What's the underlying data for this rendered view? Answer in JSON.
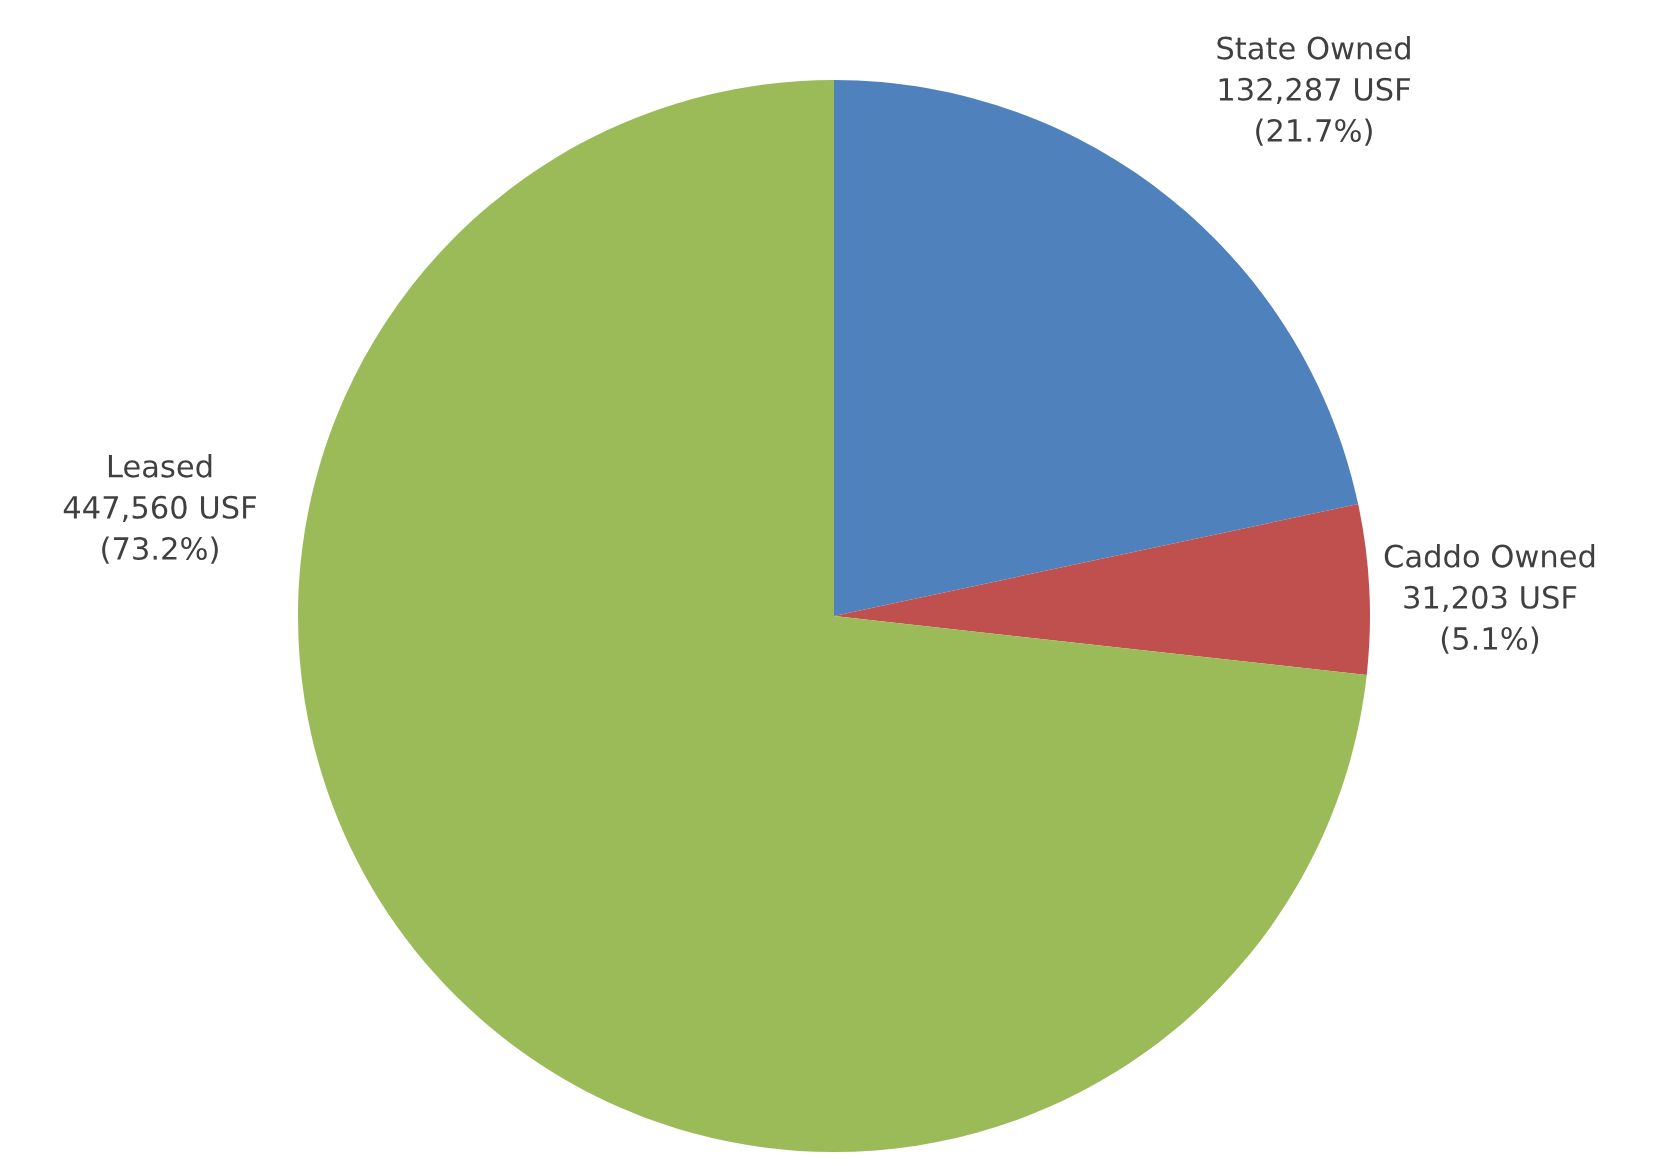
{
  "chart_data": {
    "type": "pie",
    "categories": [
      "State Owned",
      "Caddo Owned",
      "Leased"
    ],
    "values": [
      132287,
      31203,
      447560
    ],
    "colors": [
      "#4f81bd",
      "#c0504d",
      "#9bbb59"
    ],
    "value_labels": [
      "132,287 USF\n(21.7%)",
      "31,203 USF\n(5.1%)",
      "447,560 USF\n(73.2%)"
    ],
    "legend": false
  }
}
